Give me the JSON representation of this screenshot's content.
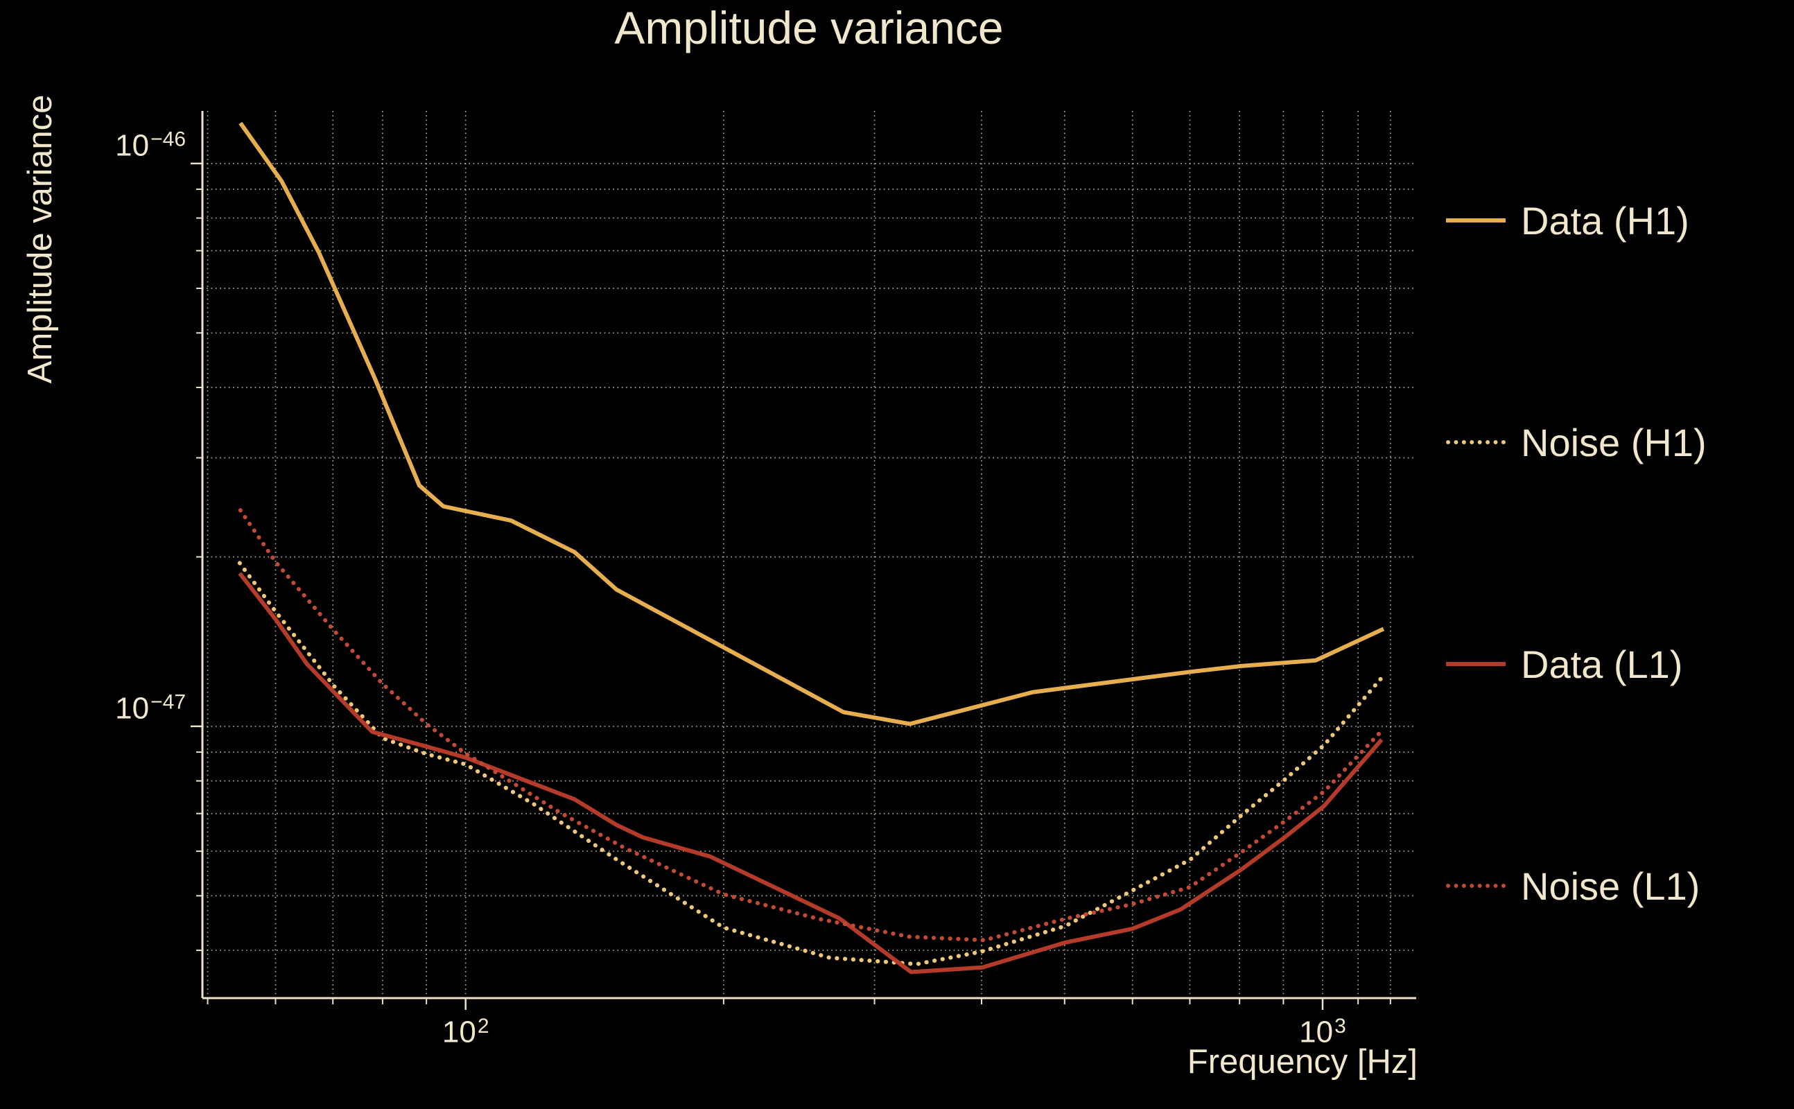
{
  "colors": {
    "background": "#000000",
    "text": "#f1e7cd",
    "grid": "rgba(241,231,205,0.72)",
    "axis": "#ece2c8",
    "data_h1": "#e6ae4e",
    "noise_h1": "#eec878",
    "data_l1": "#b43a2a",
    "noise_l1": "#c24936"
  },
  "chart_data": {
    "type": "line",
    "title": "Amplitude variance",
    "xlabel": "Frequency [Hz]",
    "ylabel": "Amplitude variance",
    "xscale": "log",
    "yscale": "log",
    "grid": true,
    "legend_position": "right",
    "xlim": [
      49.3,
      1286
    ],
    "ylim": [
      3.29e-48,
      1.24e-46
    ],
    "x_major_ticks": [
      {
        "value": 100,
        "label": "10^2"
      },
      {
        "value": 1000,
        "label": "10^3"
      }
    ],
    "y_major_ticks": [
      {
        "value": 1e-46,
        "label": "10^−46"
      },
      {
        "value": 1e-47,
        "label": "10^−47"
      }
    ],
    "x_minor_ticks": [
      50,
      60,
      70,
      80,
      90,
      200,
      300,
      400,
      500,
      600,
      700,
      800,
      900,
      1100,
      1200
    ],
    "y_minor_ticks": [
      9e-47,
      8e-47,
      7e-47,
      6e-47,
      5e-47,
      4e-47,
      3e-47,
      2e-47,
      9e-48,
      8e-48,
      7e-48,
      6e-48,
      5e-48,
      4e-48
    ],
    "series": [
      {
        "name": "Data (H1)",
        "color_key": "data_h1",
        "line_style": "solid",
        "points": [
          [
            54.6,
            1.18e-46
          ],
          [
            61.0,
            9.3e-47
          ],
          [
            67.4,
            6.95e-47
          ],
          [
            78.3,
            4.16e-47
          ],
          [
            88.3,
            2.68e-47
          ],
          [
            94.2,
            2.46e-47
          ],
          [
            113,
            2.32e-47
          ],
          [
            134,
            2.04e-47
          ],
          [
            150,
            1.75e-47
          ],
          [
            276,
            1.06e-47
          ],
          [
            330,
            1.01e-47
          ],
          [
            459,
            1.15e-47
          ],
          [
            702,
            1.25e-47
          ],
          [
            804,
            1.28e-47
          ],
          [
            982,
            1.31e-47
          ],
          [
            1178,
            1.49e-47
          ]
        ]
      },
      {
        "name": "Noise (H1)",
        "color_key": "noise_h1",
        "line_style": "dotted",
        "points": [
          [
            54.5,
            1.95e-47
          ],
          [
            60.0,
            1.6e-47
          ],
          [
            70.2,
            1.18e-47
          ],
          [
            80.0,
            9.53e-48
          ],
          [
            90.0,
            8.93e-48
          ],
          [
            100,
            8.56e-48
          ],
          [
            120,
            7.28e-48
          ],
          [
            150,
            5.8e-48
          ],
          [
            200,
            4.39e-48
          ],
          [
            266,
            3.88e-48
          ],
          [
            336,
            3.78e-48
          ],
          [
            400,
            3.98e-48
          ],
          [
            501,
            4.42e-48
          ],
          [
            600,
            5.11e-48
          ],
          [
            701,
            5.8e-48
          ],
          [
            803,
            6.94e-48
          ],
          [
            903,
            8.04e-48
          ],
          [
            1004,
            9.26e-48
          ],
          [
            1172,
            1.22e-47
          ]
        ]
      },
      {
        "name": "Data (L1)",
        "color_key": "data_l1",
        "line_style": "solid",
        "points": [
          [
            54.5,
            1.87e-47
          ],
          [
            60.0,
            1.55e-47
          ],
          [
            65.3,
            1.29e-47
          ],
          [
            70.2,
            1.15e-47
          ],
          [
            77.8,
            9.78e-48
          ],
          [
            90.0,
            9.21e-48
          ],
          [
            100,
            8.8e-48
          ],
          [
            134,
            7.42e-48
          ],
          [
            150,
            6.68e-48
          ],
          [
            161,
            6.35e-48
          ],
          [
            193,
            5.87e-48
          ],
          [
            273,
            4.56e-48
          ],
          [
            331,
            3.66e-48
          ],
          [
            401,
            3.73e-48
          ],
          [
            501,
            4.13e-48
          ],
          [
            600,
            4.37e-48
          ],
          [
            683,
            4.73e-48
          ],
          [
            803,
            5.56e-48
          ],
          [
            903,
            6.35e-48
          ],
          [
            1004,
            7.22e-48
          ],
          [
            1172,
            9.47e-48
          ]
        ]
      },
      {
        "name": "Noise (L1)",
        "color_key": "noise_l1",
        "line_style": "dotted",
        "points": [
          [
            54.6,
            2.42e-47
          ],
          [
            60.0,
            1.96e-47
          ],
          [
            70.2,
            1.48e-47
          ],
          [
            80.0,
            1.19e-47
          ],
          [
            90.0,
            1.01e-47
          ],
          [
            100,
            8.95e-48
          ],
          [
            116,
            7.77e-48
          ],
          [
            129,
            7.02e-48
          ],
          [
            153,
            6.09e-48
          ],
          [
            200,
            5.03e-48
          ],
          [
            258,
            4.55e-48
          ],
          [
            329,
            4.23e-48
          ],
          [
            403,
            4.17e-48
          ],
          [
            501,
            4.55e-48
          ],
          [
            599,
            4.83e-48
          ],
          [
            700,
            5.18e-48
          ],
          [
            803,
            5.97e-48
          ],
          [
            903,
            6.78e-48
          ],
          [
            1004,
            7.66e-48
          ],
          [
            1165,
            9.72e-48
          ]
        ]
      }
    ]
  }
}
